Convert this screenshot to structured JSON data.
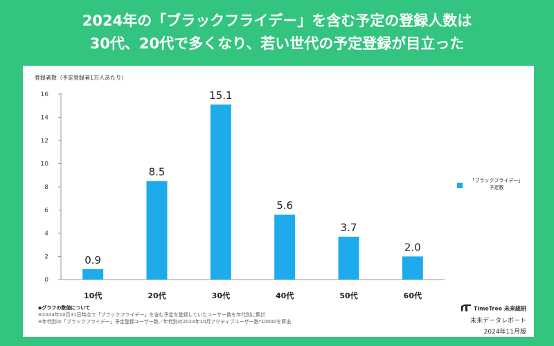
{
  "title": {
    "line1": "2024年の「ブラックフライデー」を含む予定の登録人数は",
    "line2": "30代、20代で多くなり、若い世代の予定登録が目立った"
  },
  "chart_data": {
    "type": "bar",
    "categories": [
      "10代",
      "20代",
      "30代",
      "40代",
      "50代",
      "60代"
    ],
    "series": [
      {
        "name": "「ブラックフライデー」予定数",
        "values": [
          0.9,
          8.5,
          15.1,
          5.6,
          3.7,
          2.0
        ]
      }
    ],
    "value_labels": [
      "0.9",
      "8.5",
      "15.1",
      "5.6",
      "3.7",
      "2.0"
    ],
    "ylabel": "登録者数（予定登録者1万人あたり）",
    "ylim": [
      0,
      16
    ],
    "yticks": [
      0,
      2,
      4,
      6,
      8,
      10,
      12,
      14,
      16
    ],
    "bar_color": "#1fabeb",
    "legend_position": "right",
    "grid": false
  },
  "legend": {
    "line1": "「ブラックフライデー」",
    "line2": "予定数"
  },
  "notes": {
    "heading": "◆グラフの数値について",
    "line1": "※2024年10月31日時点で「ブラックフライデー」を含む予定を登録していたユーザー数を年代別に集計",
    "line2": "※年代別の「ブラックフライデー」予定登録ユーザー数／年代別の2024年10月アクティブユーザー数*10000を算出"
  },
  "brand": {
    "logo_icon": "timetree-logo-icon",
    "name": "TimeTree 未来総研",
    "report": "未来データレポート",
    "edition": "2024年11月版"
  },
  "colors": {
    "frame": "#33c47f",
    "bar": "#1fabeb"
  }
}
